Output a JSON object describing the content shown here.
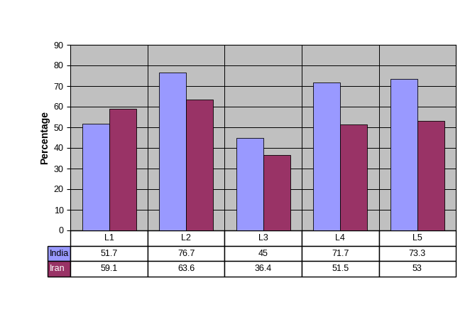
{
  "chart_data": {
    "type": "bar",
    "y_label": "Percentage",
    "categories": [
      "L1",
      "L2",
      "L3",
      "L4",
      "L5"
    ],
    "series": [
      {
        "name": "India",
        "color": "#9999ff",
        "values": [
          51.7,
          76.7,
          45,
          71.7,
          73.3
        ]
      },
      {
        "name": "Iran",
        "color": "#993366",
        "values": [
          59.1,
          63.6,
          36.4,
          51.5,
          53
        ]
      }
    ],
    "ylim": [
      0,
      90
    ],
    "yticks": [
      0,
      10,
      20,
      30,
      40,
      50,
      60,
      70,
      80,
      90
    ],
    "grid": true,
    "tick_labels": "y"
  }
}
